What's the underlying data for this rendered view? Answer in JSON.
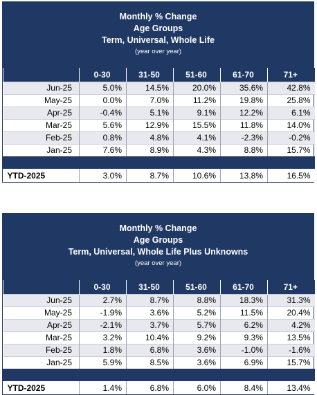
{
  "columns": [
    "",
    "0-30",
    "31-50",
    "51-60",
    "61-70",
    "71+"
  ],
  "table1": {
    "title": "Monthly % Change",
    "subtitle1": "Age Groups",
    "subtitle2": "Term, Universal, Whole Life",
    "note": "(year over year)",
    "rows": [
      {
        "label": "Jun-25",
        "values": [
          "5.0%",
          "14.5%",
          "20.0%",
          "35.6%",
          "42.8%"
        ]
      },
      {
        "label": "May-25",
        "values": [
          "0.0%",
          "7.0%",
          "11.2%",
          "19.8%",
          "25.8%"
        ]
      },
      {
        "label": "Apr-25",
        "values": [
          "-0.4%",
          "5.1%",
          "9.1%",
          "12.2%",
          "6.1%"
        ]
      },
      {
        "label": "Mar-25",
        "values": [
          "5.6%",
          "12.9%",
          "15.5%",
          "11.8%",
          "14.0%"
        ]
      },
      {
        "label": "Feb-25",
        "values": [
          "0.8%",
          "4.8%",
          "4.1%",
          "-2.3%",
          "-0.2%"
        ]
      },
      {
        "label": "Jan-25",
        "values": [
          "7.6%",
          "8.9%",
          "4.3%",
          "8.8%",
          "15.7%"
        ]
      }
    ],
    "ytd": {
      "label": "YTD-2025",
      "values": [
        "3.0%",
        "8.7%",
        "10.6%",
        "13.8%",
        "16.5%"
      ]
    }
  },
  "table2": {
    "title": "Monthly % Change",
    "subtitle1": "Age Groups",
    "subtitle2": "Term, Universal, Whole Life Plus Unknowns",
    "note": "(year over year)",
    "rows": [
      {
        "label": "Jun-25",
        "values": [
          "2.7%",
          "8.7%",
          "8.8%",
          "18.3%",
          "31.3%"
        ]
      },
      {
        "label": "May-25",
        "values": [
          "-1.9%",
          "3.6%",
          "5.2%",
          "11.5%",
          "20.4%"
        ]
      },
      {
        "label": "Apr-25",
        "values": [
          "-2.1%",
          "3.7%",
          "5.7%",
          "6.2%",
          "4.2%"
        ]
      },
      {
        "label": "Mar-25",
        "values": [
          "3.2%",
          "10.4%",
          "9.2%",
          "9.3%",
          "13.5%"
        ]
      },
      {
        "label": "Feb-25",
        "values": [
          "1.8%",
          "6.8%",
          "3.6%",
          "-1.0%",
          "-1.6%"
        ]
      },
      {
        "label": "Jan-25",
        "values": [
          "5.9%",
          "8.5%",
          "3.6%",
          "6.9%",
          "15.7%"
        ]
      }
    ],
    "ytd": {
      "label": "YTD-2025",
      "values": [
        "1.4%",
        "6.8%",
        "6.0%",
        "8.4%",
        "13.4%"
      ]
    }
  }
}
